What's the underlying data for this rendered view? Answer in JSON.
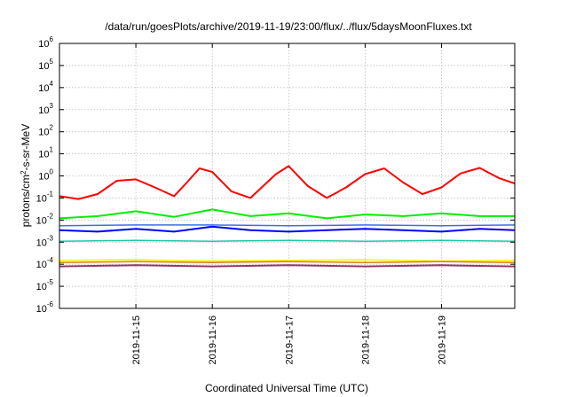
{
  "chart_data": {
    "type": "line",
    "title": "/data/run/goesPlots/archive/2019-11-19/23:00/flux/../flux/5daysMoonFluxes.txt",
    "xlabel": "Coordinated Universal Time (UTC)",
    "ylabel": {
      "base": "protons/cm",
      "sup": "2",
      "rest": "-s-sr-MeV"
    },
    "scale_y": "log",
    "grid": true,
    "legend": "none",
    "xlim": [
      "2019-11-14T00:00",
      "2019-11-19T23:00"
    ],
    "ylim": [
      1e-06,
      1000000.0
    ],
    "y_ticks": [
      {
        "value": 1e-06,
        "base": "10",
        "exp": "-6"
      },
      {
        "value": 1e-05,
        "base": "10",
        "exp": "-5"
      },
      {
        "value": 0.0001,
        "base": "10",
        "exp": "-4"
      },
      {
        "value": 0.001,
        "base": "10",
        "exp": "-3"
      },
      {
        "value": 0.01,
        "base": "10",
        "exp": "-2"
      },
      {
        "value": 0.1,
        "base": "10",
        "exp": "-1"
      },
      {
        "value": 1,
        "base": "10",
        "exp": "0"
      },
      {
        "value": 10,
        "base": "10",
        "exp": "1"
      },
      {
        "value": 100,
        "base": "10",
        "exp": "2"
      },
      {
        "value": 1000,
        "base": "10",
        "exp": "3"
      },
      {
        "value": 10000,
        "base": "10",
        "exp": "4"
      },
      {
        "value": 100000,
        "base": "10",
        "exp": "5"
      },
      {
        "value": 1000000,
        "base": "10",
        "exp": "6"
      }
    ],
    "x_ticks": [
      "2019-11-15",
      "2019-11-16",
      "2019-11-17",
      "2019-11-18",
      "2019-11-19"
    ],
    "series": [
      {
        "color": "#ff0000",
        "width": 2,
        "x": [
          "2019-11-14T00:00",
          "2019-11-14T06:00",
          "2019-11-14T12:00",
          "2019-11-14T18:00",
          "2019-11-15T00:00",
          "2019-11-15T06:00",
          "2019-11-15T12:00",
          "2019-11-15T16:00",
          "2019-11-15T20:00",
          "2019-11-16T00:00",
          "2019-11-16T06:00",
          "2019-11-16T12:00",
          "2019-11-16T16:00",
          "2019-11-16T20:00",
          "2019-11-17T00:00",
          "2019-11-17T06:00",
          "2019-11-17T12:00",
          "2019-11-17T18:00",
          "2019-11-18T00:00",
          "2019-11-18T06:00",
          "2019-11-18T12:00",
          "2019-11-18T18:00",
          "2019-11-19T00:00",
          "2019-11-19T06:00",
          "2019-11-19T12:00",
          "2019-11-19T18:00",
          "2019-11-19T23:00"
        ],
        "y": [
          0.12,
          0.09,
          0.15,
          0.6,
          0.7,
          0.3,
          0.12,
          0.5,
          2.2,
          1.5,
          0.2,
          0.1,
          0.35,
          1.2,
          2.8,
          0.35,
          0.1,
          0.3,
          1.2,
          2.2,
          0.5,
          0.15,
          0.3,
          1.3,
          2.3,
          0.8,
          0.45
        ]
      },
      {
        "color": "#00ee00",
        "width": 2,
        "x": [
          "2019-11-14T00:00",
          "2019-11-14T12:00",
          "2019-11-15T00:00",
          "2019-11-15T12:00",
          "2019-11-16T00:00",
          "2019-11-16T12:00",
          "2019-11-17T00:00",
          "2019-11-17T12:00",
          "2019-11-18T00:00",
          "2019-11-18T12:00",
          "2019-11-19T00:00",
          "2019-11-19T12:00",
          "2019-11-19T23:00"
        ],
        "y": [
          0.012,
          0.015,
          0.025,
          0.014,
          0.03,
          0.015,
          0.02,
          0.012,
          0.018,
          0.015,
          0.02,
          0.015,
          0.015
        ]
      },
      {
        "color": "#0000ff",
        "width": 2,
        "x": [
          "2019-11-14T00:00",
          "2019-11-14T12:00",
          "2019-11-15T00:00",
          "2019-11-15T12:00",
          "2019-11-16T00:00",
          "2019-11-16T12:00",
          "2019-11-17T00:00",
          "2019-11-17T12:00",
          "2019-11-18T00:00",
          "2019-11-18T12:00",
          "2019-11-19T00:00",
          "2019-11-19T12:00",
          "2019-11-19T23:00"
        ],
        "y": [
          0.0035,
          0.003,
          0.004,
          0.003,
          0.005,
          0.0035,
          0.003,
          0.0035,
          0.004,
          0.0035,
          0.003,
          0.004,
          0.0035
        ]
      },
      {
        "color": "#3a6ee8",
        "width": 1.5,
        "x": [
          "2019-11-14T00:00",
          "2019-11-15T00:00",
          "2019-11-16T00:00",
          "2019-11-17T00:00",
          "2019-11-18T00:00",
          "2019-11-19T00:00",
          "2019-11-19T23:00"
        ],
        "y": [
          0.0055,
          0.006,
          0.006,
          0.0055,
          0.006,
          0.0055,
          0.006
        ]
      },
      {
        "color": "#20c8a8",
        "width": 1.5,
        "x": [
          "2019-11-14T00:00",
          "2019-11-15T00:00",
          "2019-11-16T00:00",
          "2019-11-17T00:00",
          "2019-11-18T00:00",
          "2019-11-19T00:00",
          "2019-11-19T23:00"
        ],
        "y": [
          0.0011,
          0.0012,
          0.0011,
          0.0012,
          0.0011,
          0.0012,
          0.0011
        ]
      },
      {
        "color": "#ffee00",
        "width": 1.5,
        "x": [
          "2019-11-14T00:00",
          "2019-11-15T00:00",
          "2019-11-16T00:00",
          "2019-11-17T00:00",
          "2019-11-18T00:00",
          "2019-11-19T00:00",
          "2019-11-19T23:00"
        ],
        "y": [
          0.00015,
          0.00016,
          0.00014,
          0.00015,
          0.00016,
          0.00014,
          0.00015
        ]
      },
      {
        "color": "#d08020",
        "width": 1.5,
        "x": [
          "2019-11-14T00:00",
          "2019-11-15T00:00",
          "2019-11-16T00:00",
          "2019-11-17T00:00",
          "2019-11-18T00:00",
          "2019-11-19T00:00",
          "2019-11-19T23:00"
        ],
        "y": [
          0.00012,
          0.00013,
          0.00012,
          0.00013,
          0.00012,
          0.00013,
          0.00012
        ]
      },
      {
        "color": "#993366",
        "width": 2,
        "x": [
          "2019-11-14T00:00",
          "2019-11-15T00:00",
          "2019-11-16T00:00",
          "2019-11-17T00:00",
          "2019-11-18T00:00",
          "2019-11-19T00:00",
          "2019-11-19T23:00"
        ],
        "y": [
          8e-05,
          9e-05,
          8e-05,
          9e-05,
          8e-05,
          9e-05,
          8e-05
        ]
      }
    ]
  }
}
